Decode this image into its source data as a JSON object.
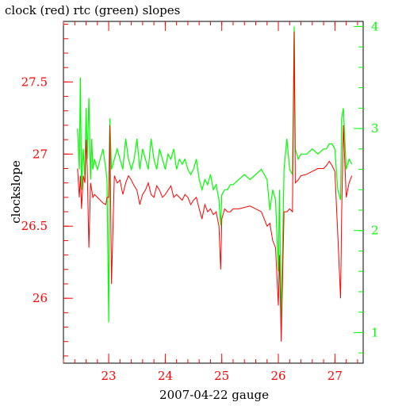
{
  "chart_data": {
    "type": "line",
    "title": "clock (red) rtc (green) slopes",
    "xlabel": "2007-04-22 gauge",
    "ylabel": "clockslope",
    "xlim": [
      22.2,
      27.5
    ],
    "ylim": [
      25.55,
      27.92
    ],
    "y2lim": [
      0.7,
      4.05
    ],
    "x_ticks": [
      "23",
      "24",
      "25",
      "26",
      "27"
    ],
    "y_ticks": [
      "26",
      "26.5",
      "27",
      "27.5"
    ],
    "y2_ticks": [
      "1",
      "2",
      "3",
      "4"
    ],
    "colors": {
      "clock": "#ff0000",
      "rtc": "#00ff00",
      "axes": "#000000"
    },
    "grid": false,
    "series": [
      {
        "name": "clock",
        "axis": "left",
        "x": [
          22.45,
          22.48,
          22.5,
          22.52,
          22.55,
          22.58,
          22.6,
          22.62,
          22.65,
          22.68,
          22.7,
          22.72,
          22.75,
          22.8,
          22.85,
          22.9,
          22.95,
          22.97,
          23.0,
          23.02,
          23.05,
          23.1,
          23.15,
          23.2,
          23.25,
          23.3,
          23.35,
          23.4,
          23.45,
          23.5,
          23.55,
          23.6,
          23.65,
          23.7,
          23.75,
          23.8,
          23.85,
          23.9,
          23.95,
          24.0,
          24.05,
          24.1,
          24.15,
          24.2,
          24.25,
          24.3,
          24.35,
          24.4,
          24.45,
          24.5,
          24.55,
          24.6,
          24.65,
          24.7,
          24.75,
          24.8,
          24.85,
          24.9,
          24.95,
          24.98,
          25.0,
          25.05,
          25.1,
          25.15,
          25.2,
          25.3,
          25.4,
          25.5,
          25.6,
          25.7,
          25.75,
          25.8,
          25.85,
          25.9,
          25.95,
          26.0,
          26.02,
          26.05,
          26.1,
          26.15,
          26.2,
          26.25,
          26.28,
          26.3,
          26.35,
          26.4,
          26.5,
          26.6,
          26.7,
          26.8,
          26.85,
          26.9,
          26.95,
          27.0,
          27.05,
          27.1,
          27.12,
          27.15,
          27.2,
          27.25,
          27.3
        ],
        "y": [
          26.9,
          26.7,
          26.85,
          26.62,
          26.85,
          26.8,
          27.1,
          26.9,
          26.35,
          26.8,
          26.75,
          26.7,
          26.72,
          26.7,
          26.68,
          26.66,
          26.65,
          26.7,
          26.7,
          27.2,
          26.1,
          26.85,
          26.8,
          26.82,
          26.72,
          26.8,
          26.85,
          26.82,
          26.78,
          26.75,
          26.65,
          26.72,
          26.75,
          26.8,
          26.72,
          26.7,
          26.78,
          26.75,
          26.7,
          26.72,
          26.75,
          26.78,
          26.7,
          26.72,
          26.7,
          26.68,
          26.72,
          26.7,
          26.65,
          26.68,
          26.7,
          26.62,
          26.55,
          26.65,
          26.6,
          26.62,
          26.58,
          26.6,
          26.5,
          26.2,
          26.55,
          26.62,
          26.6,
          26.6,
          26.62,
          26.62,
          26.63,
          26.64,
          26.62,
          26.6,
          26.55,
          26.5,
          26.52,
          26.4,
          26.35,
          25.95,
          26.3,
          25.7,
          26.6,
          26.6,
          26.62,
          26.6,
          27.85,
          26.8,
          26.82,
          26.85,
          26.86,
          26.88,
          26.9,
          26.9,
          26.92,
          26.95,
          26.92,
          26.88,
          26.45,
          26.0,
          26.6,
          27.2,
          26.7,
          26.8,
          26.85
        ]
      },
      {
        "name": "rtc",
        "axis": "right",
        "x": [
          22.45,
          22.48,
          22.5,
          22.52,
          22.55,
          22.58,
          22.6,
          22.62,
          22.65,
          22.68,
          22.7,
          22.72,
          22.75,
          22.8,
          22.85,
          22.9,
          22.95,
          22.97,
          23.0,
          23.02,
          23.05,
          23.1,
          23.15,
          23.2,
          23.25,
          23.3,
          23.35,
          23.4,
          23.45,
          23.5,
          23.55,
          23.6,
          23.65,
          23.7,
          23.75,
          23.8,
          23.85,
          23.9,
          23.95,
          24.0,
          24.05,
          24.1,
          24.15,
          24.2,
          24.25,
          24.3,
          24.35,
          24.4,
          24.45,
          24.5,
          24.55,
          24.6,
          24.65,
          24.7,
          24.75,
          24.8,
          24.85,
          24.9,
          24.95,
          24.98,
          25.0,
          25.05,
          25.1,
          25.15,
          25.2,
          25.3,
          25.4,
          25.5,
          25.6,
          25.7,
          25.75,
          25.8,
          25.85,
          25.9,
          25.95,
          26.0,
          26.02,
          26.05,
          26.1,
          26.15,
          26.2,
          26.25,
          26.28,
          26.3,
          26.35,
          26.4,
          26.5,
          26.6,
          26.7,
          26.8,
          26.85,
          26.9,
          26.95,
          27.0,
          27.05,
          27.1,
          27.12,
          27.15,
          27.2,
          27.25,
          27.3
        ],
        "y": [
          3.0,
          2.6,
          3.5,
          2.4,
          2.8,
          2.5,
          3.2,
          2.7,
          3.3,
          2.5,
          2.9,
          2.6,
          2.7,
          2.6,
          2.7,
          2.8,
          2.6,
          2.5,
          1.1,
          3.1,
          2.6,
          2.7,
          2.8,
          2.7,
          2.6,
          2.9,
          2.7,
          2.6,
          2.7,
          2.9,
          2.6,
          2.8,
          2.7,
          2.6,
          2.9,
          2.7,
          2.6,
          2.8,
          2.7,
          2.6,
          2.75,
          2.7,
          2.8,
          2.6,
          2.7,
          2.65,
          2.7,
          2.6,
          2.55,
          2.6,
          2.7,
          2.5,
          2.4,
          2.5,
          2.45,
          2.55,
          2.4,
          2.45,
          2.3,
          2.05,
          2.35,
          2.4,
          2.4,
          2.45,
          2.45,
          2.5,
          2.55,
          2.5,
          2.55,
          2.6,
          2.55,
          2.5,
          2.2,
          2.4,
          2.3,
          1.6,
          2.4,
          1.1,
          2.6,
          2.9,
          2.6,
          2.55,
          4.0,
          2.8,
          2.7,
          2.75,
          2.75,
          2.8,
          2.75,
          2.8,
          2.8,
          2.85,
          2.85,
          2.8,
          2.4,
          2.3,
          3.1,
          3.2,
          2.6,
          2.7,
          2.65
        ]
      }
    ]
  }
}
